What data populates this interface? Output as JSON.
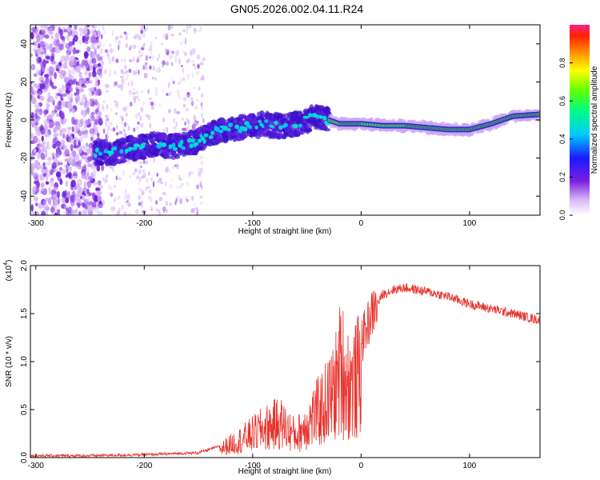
{
  "title": "GN05.2026.002.04.11.R24",
  "chart_data": [
    {
      "type": "heatmap",
      "xlabel": "Height of straight line (km)",
      "ylabel": "Frequency (Hz)",
      "xlim": [
        -305,
        165
      ],
      "ylim": [
        -50,
        50
      ],
      "xticks": [
        -300,
        -200,
        -100,
        0,
        100
      ],
      "yticks": [
        -40,
        -20,
        0,
        20,
        40
      ],
      "ridge": {
        "x": [
          -245,
          -230,
          -210,
          -190,
          -170,
          -150,
          -130,
          -110,
          -90,
          -70,
          -50,
          -40,
          -30,
          -20,
          0,
          20,
          40,
          60,
          80,
          100,
          120,
          140,
          165
        ],
        "y": [
          -17,
          -17,
          -15,
          -13,
          -14,
          -11,
          -5,
          -4,
          -2,
          -4,
          0,
          2,
          0,
          -2,
          -2,
          -3,
          -3,
          -4,
          -5,
          -5,
          -2,
          2,
          3
        ]
      },
      "colorbar": {
        "label": "Normalized spectral amplitude",
        "ticks": [
          "0.0",
          "0.2",
          "0.4",
          "0.6",
          "0.8"
        ],
        "range": [
          0,
          1
        ]
      }
    },
    {
      "type": "line",
      "xlabel": "Height of straight line (km)",
      "ylabel": "SNR (10 * v/v)",
      "multiplier": "(x10",
      "multiplier_exp": "4",
      "xlim": [
        -305,
        165
      ],
      "ylim": [
        0,
        2.0
      ],
      "xticks": [
        -300,
        -200,
        -100,
        0,
        100
      ],
      "yticks": [
        "0.0",
        "0.5",
        "1.0",
        "1.5",
        "2.0"
      ],
      "series": [
        {
          "name": "SNR",
          "color": "#e8322c",
          "x": [
            -305,
            -250,
            -200,
            -150,
            -130,
            -110,
            -90,
            -75,
            -60,
            -45,
            -35,
            -25,
            -18,
            -15,
            -10,
            -5,
            0,
            10,
            20,
            30,
            40,
            50,
            60,
            80,
            100,
            120,
            140,
            165
          ],
          "y": [
            0.02,
            0.02,
            0.03,
            0.05,
            0.12,
            0.25,
            0.4,
            0.48,
            0.3,
            0.55,
            0.7,
            0.9,
            1.3,
            1.1,
            1.0,
            1.05,
            1.2,
            1.5,
            1.7,
            1.75,
            1.77,
            1.75,
            1.73,
            1.68,
            1.6,
            1.55,
            1.5,
            1.43
          ]
        }
      ]
    }
  ]
}
